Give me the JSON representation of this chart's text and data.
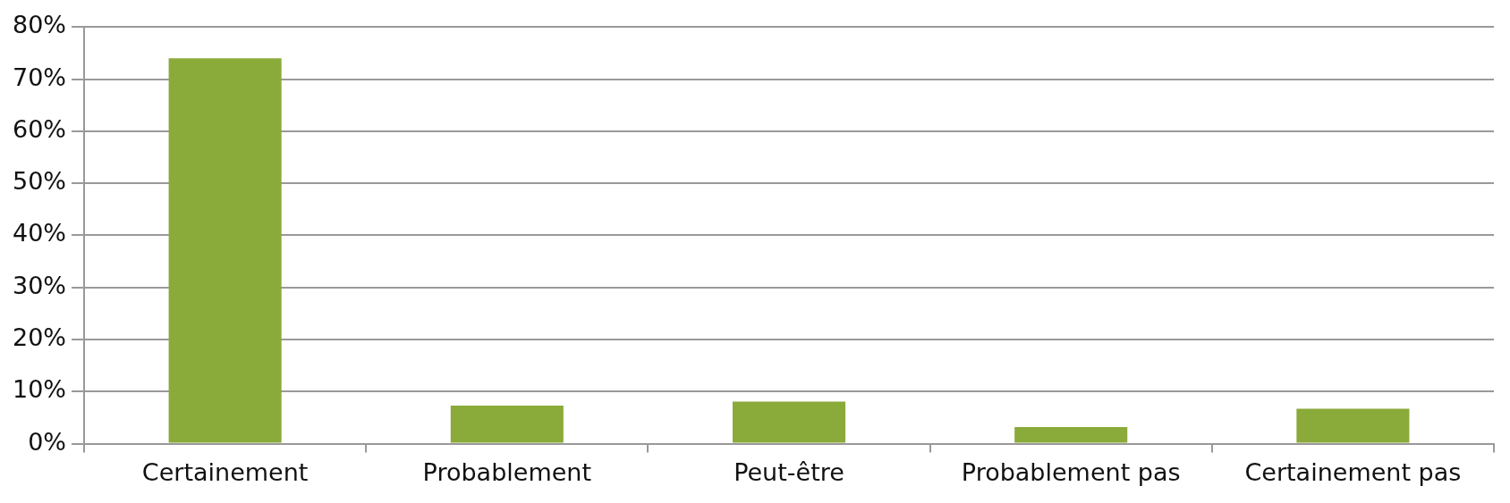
{
  "chart_data": {
    "type": "bar",
    "categories": [
      "Certainement",
      "Probablement",
      "Peut-être",
      "Probablement pas",
      "Certainement pas"
    ],
    "values": [
      74,
      7.3,
      8.1,
      3.2,
      6.7
    ],
    "color": "#8aaa3a",
    "ylim": [
      0,
      80
    ],
    "yticks": [
      {
        "value": 0,
        "label": "0%"
      },
      {
        "value": 10,
        "label": "10%"
      },
      {
        "value": 20,
        "label": "20%"
      },
      {
        "value": 30,
        "label": "30%"
      },
      {
        "value": 40,
        "label": "40%"
      },
      {
        "value": 50,
        "label": "50%"
      },
      {
        "value": 60,
        "label": "60%"
      },
      {
        "value": 70,
        "label": "70%"
      },
      {
        "value": 80,
        "label": "80%"
      }
    ],
    "grid": "y",
    "legend": false
  }
}
